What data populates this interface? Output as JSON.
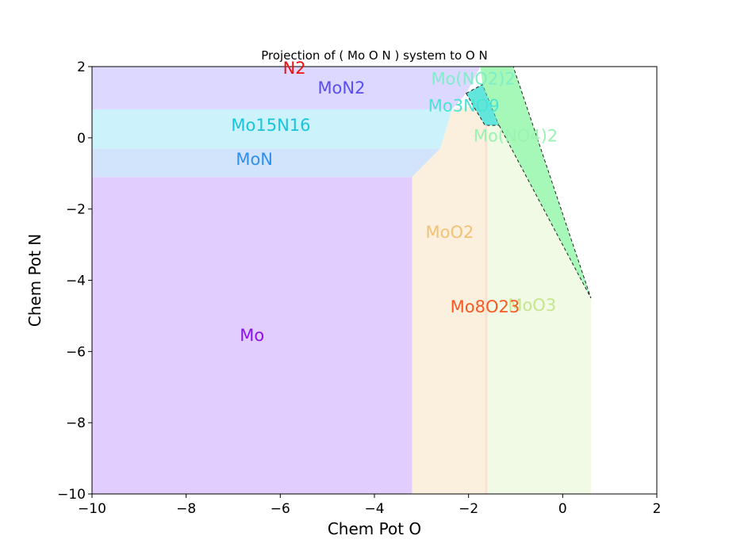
{
  "chart_data": {
    "type": "phase-diagram",
    "title": "Projection of ( Mo O N ) system to O N",
    "xlabel": "Chem Pot O",
    "ylabel": "Chem Pot N",
    "xlim": [
      -10,
      2
    ],
    "ylim": [
      -10,
      2
    ],
    "xticks": [
      -10,
      -8,
      -6,
      -4,
      -2,
      0,
      2
    ],
    "yticks": [
      -10,
      -8,
      -6,
      -4,
      -2,
      0,
      2
    ],
    "xtick_labels": [
      "−10",
      "−8",
      "−6",
      "−4",
      "−2",
      "0",
      "2"
    ],
    "ytick_labels": [
      "−10",
      "−8",
      "−6",
      "−4",
      "−2",
      "0",
      "2"
    ],
    "grid": false,
    "regions": [
      {
        "name": "Mo",
        "color": "#e2cdff",
        "label_at": [
          -6.6,
          -5.55
        ],
        "label_color": "#8c10f0",
        "polygon": [
          [
            -10,
            -10
          ],
          [
            -3.2,
            -10
          ],
          [
            -3.2,
            -1.1
          ],
          [
            -10,
            -1.1
          ]
        ]
      },
      {
        "name": "MoN",
        "color": "#d2e4fc",
        "label_at": [
          -6.55,
          -0.6
        ],
        "label_color": "#2e8ff0",
        "polygon": [
          [
            -10,
            -1.1
          ],
          [
            -3.2,
            -1.1
          ],
          [
            -2.6,
            -0.3
          ],
          [
            -10,
            -0.3
          ]
        ]
      },
      {
        "name": "Mo15N16",
        "color": "#ccf3fb",
        "label_at": [
          -6.2,
          0.35
        ],
        "label_color": "#18c4dd",
        "polygon": [
          [
            -10,
            -0.3
          ],
          [
            -2.6,
            -0.3
          ],
          [
            -2.35,
            0.8
          ],
          [
            -10,
            0.8
          ]
        ]
      },
      {
        "name": "MoN2",
        "color": "#dcd8ff",
        "label_at": [
          -4.7,
          1.4
        ],
        "label_color": "#5b4ef0",
        "polygon": [
          [
            -10,
            0.8
          ],
          [
            -2.35,
            0.8
          ],
          [
            -2.05,
            1.25
          ],
          [
            -1.75,
            2
          ],
          [
            -10,
            2
          ]
        ]
      },
      {
        "name": "MoO2",
        "color": "#fbefde",
        "label_at": [
          -2.4,
          -2.65
        ],
        "label_color": "#f2c176",
        "polygon": [
          [
            -3.2,
            -10
          ],
          [
            -1.65,
            -10
          ],
          [
            -1.65,
            0.35
          ],
          [
            -1.9,
            0.9
          ],
          [
            -2.35,
            0.8
          ],
          [
            -2.6,
            -0.3
          ],
          [
            -3.2,
            -1.1
          ]
        ]
      },
      {
        "name": "MoO3",
        "color": "#f1fae4",
        "label_at": [
          -0.65,
          -4.7
        ],
        "label_color": "#c5e68c",
        "polygon": [
          [
            -1.6,
            -10
          ],
          [
            0.6,
            -10
          ],
          [
            0.6,
            -4.5
          ],
          [
            -1.35,
            0.35
          ],
          [
            -1.6,
            0.35
          ]
        ]
      },
      {
        "name": "Mo3NO9",
        "color": "#62e6dc",
        "label_at": [
          -2.1,
          0.9
        ],
        "label_color": "#48e4d4",
        "polygon": [
          [
            -2.05,
            1.25
          ],
          [
            -1.7,
            1.5
          ],
          [
            -1.35,
            0.35
          ],
          [
            -1.65,
            0.35
          ],
          [
            -1.9,
            0.9
          ]
        ]
      },
      {
        "name": "Mo(NO4)2",
        "color": "#a6f8b8",
        "label_at": [
          -1.0,
          0.05
        ],
        "label_color": "#9af3b0",
        "polygon": [
          [
            -1.35,
            0.35
          ],
          [
            0.6,
            -4.5
          ],
          [
            -1.05,
            2
          ],
          [
            -1.7,
            2
          ]
        ]
      },
      {
        "name": "Mo(NO2)2",
        "color": "#a6f8b8",
        "label_at": [
          -1.9,
          1.65
        ],
        "label_color": "#7eeec8",
        "polygon": [
          [
            -1.75,
            2
          ],
          [
            -1.05,
            2
          ],
          [
            -1.35,
            0.35
          ],
          [
            -1.7,
            1.5
          ]
        ]
      },
      {
        "name": "Mo8O23",
        "color": "#fde0d2",
        "label_at": [
          -1.65,
          -4.75
        ],
        "label_color": "#f85a22",
        "polygon": [
          [
            -1.65,
            -10
          ],
          [
            -1.6,
            -10
          ],
          [
            -1.6,
            0.35
          ],
          [
            -1.65,
            0.35
          ]
        ]
      },
      {
        "name": "N2",
        "color": "#ff0000",
        "label_at": [
          -5.7,
          1.95
        ],
        "label_color": "#ee1111",
        "polygon": []
      }
    ],
    "dashed_regions": [
      "Mo3NO9",
      "Mo(NO4)2"
    ]
  }
}
